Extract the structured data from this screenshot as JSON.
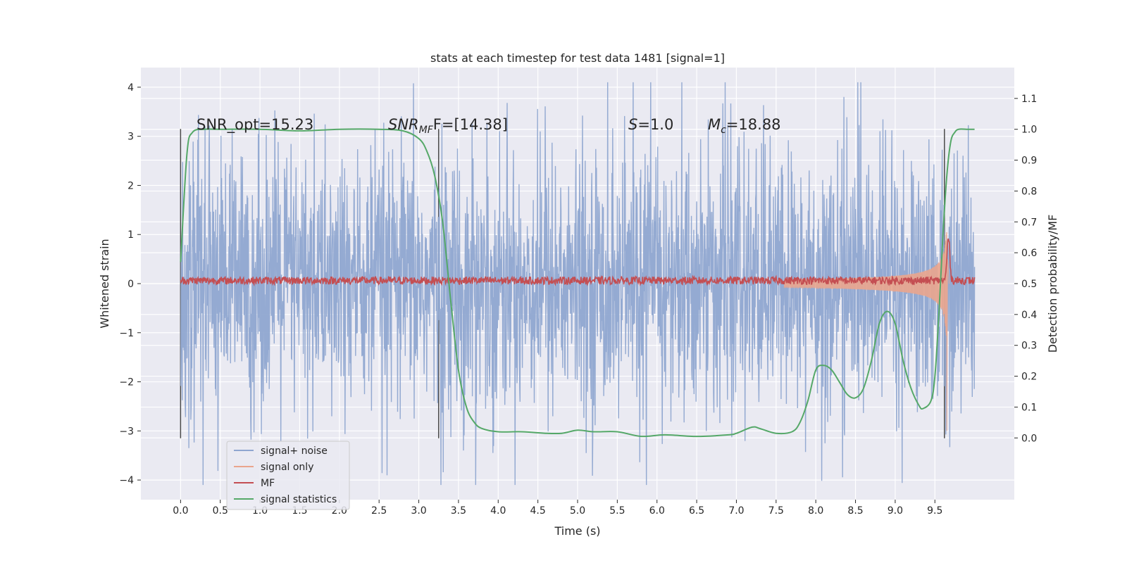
{
  "chart_data": {
    "type": "line",
    "title": "stats at each timestep for test data 1481 [signal=1]",
    "xlabel": "Time (s)",
    "ylabel_left": "Whitened strain",
    "ylabel_right": "Detection probability/MF",
    "xlim": [
      -0.5,
      10.5
    ],
    "ylim_left": [
      -4.4,
      4.4
    ],
    "ylim_right": [
      -0.2,
      1.2
    ],
    "x_ticks": [
      "0.0",
      "0.5",
      "1.0",
      "1.5",
      "2.0",
      "2.5",
      "3.0",
      "3.5",
      "4.0",
      "4.5",
      "5.0",
      "5.5",
      "6.0",
      "6.5",
      "7.0",
      "7.5",
      "8.0",
      "8.5",
      "9.0",
      "9.5"
    ],
    "y_left_ticks": [
      "4",
      "3",
      "2",
      "1",
      "0",
      "−1",
      "−2",
      "−3",
      "−4"
    ],
    "y_right_ticks": [
      "1.1",
      "1.0",
      "0.9",
      "0.8",
      "0.7",
      "0.6",
      "0.5",
      "0.4",
      "0.3",
      "0.2",
      "0.1",
      "0.0"
    ],
    "grid": true,
    "legend_position": "lower-left",
    "annotations": {
      "snr_opt": "SNR_opt=15.23",
      "snr_mf_base": "SNR",
      "snr_mf_sub": "MF",
      "snr_mf_rest": "F=[14.38]",
      "s_label": "S",
      "s_value": "=1.0",
      "mc_label": "M",
      "mc_sub": "c",
      "mc_value": "=18.88"
    },
    "vertical_lines_x": [
      0.0,
      3.25,
      9.62
    ],
    "series": [
      {
        "name": "signal+ noise",
        "color": "#8fa6d0",
        "axis": "left",
        "noise_amplitude": 1.3,
        "x_range": [
          0.0,
          10.0
        ]
      },
      {
        "name": "signal only",
        "color": "#eaa58d",
        "axis": "left",
        "chirp_end_x": 9.65,
        "peak_amplitude": 1.3
      },
      {
        "name": "MF",
        "color": "#c44e52",
        "axis": "right",
        "baseline": 0.51,
        "peak_x": 9.67,
        "peak_value": 0.65
      },
      {
        "name": "signal statistics",
        "color": "#55a868",
        "axis": "right",
        "x": [
          0.0,
          0.08,
          0.15,
          0.3,
          0.5,
          1.0,
          1.5,
          2.0,
          2.5,
          2.8,
          3.0,
          3.1,
          3.2,
          3.3,
          3.4,
          3.5,
          3.6,
          3.7,
          3.8,
          4.0,
          4.3,
          4.6,
          4.8,
          5.0,
          5.2,
          5.5,
          5.8,
          6.1,
          6.5,
          6.9,
          7.0,
          7.2,
          7.3,
          7.5,
          7.7,
          7.8,
          7.9,
          8.0,
          8.1,
          8.2,
          8.3,
          8.4,
          8.5,
          8.6,
          8.7,
          8.8,
          8.9,
          9.0,
          9.1,
          9.2,
          9.3,
          9.35,
          9.45,
          9.5,
          9.55,
          9.6,
          9.65,
          9.7,
          9.75,
          9.8,
          9.9,
          10.0
        ],
        "values": [
          0.57,
          0.92,
          0.99,
          1.0,
          1.0,
          1.0,
          0.995,
          1.0,
          1.0,
          0.995,
          0.97,
          0.93,
          0.85,
          0.7,
          0.45,
          0.22,
          0.1,
          0.05,
          0.03,
          0.02,
          0.02,
          0.015,
          0.015,
          0.025,
          0.02,
          0.02,
          0.005,
          0.01,
          0.005,
          0.01,
          0.015,
          0.035,
          0.03,
          0.015,
          0.02,
          0.05,
          0.12,
          0.22,
          0.235,
          0.22,
          0.18,
          0.14,
          0.13,
          0.16,
          0.25,
          0.37,
          0.41,
          0.37,
          0.25,
          0.16,
          0.105,
          0.095,
          0.12,
          0.2,
          0.4,
          0.65,
          0.85,
          0.96,
          0.99,
          1.0,
          1.0,
          1.0
        ]
      }
    ]
  }
}
